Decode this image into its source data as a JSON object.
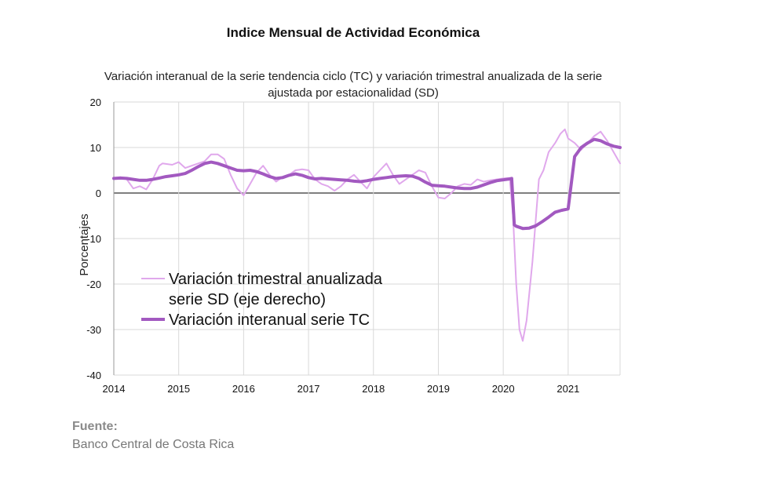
{
  "header": {
    "title": "Indice Mensual de  Actividad Económica",
    "subtitle_line1": "Variación interanual de la serie tendencia ciclo (TC) y variación trimestral anualizada de la serie",
    "subtitle_line2": "ajustada por estacionalidad (SD)"
  },
  "source": {
    "label": "Fuente:",
    "text": "Banco Central de Costa Rica"
  },
  "chart_data": {
    "type": "line",
    "title": "Indice Mensual de  Actividad Económica",
    "subtitle": "Variación interanual de la serie tendencia ciclo (TC) y variación trimestral anualizada de la serie ajustada por estacionalidad (SD)",
    "xlabel": "",
    "ylabel": "Porcentajes",
    "xlim": [
      2014,
      2021.8
    ],
    "ylim": [
      -40,
      20
    ],
    "yticks": [
      "20",
      "10",
      "0",
      "-10",
      "-20",
      "-30",
      "-40"
    ],
    "xticks": [
      "2014",
      "2015",
      "2016",
      "2017",
      "2018",
      "2019",
      "2020",
      "2021"
    ],
    "grid": true,
    "legend_position": "bottom-left",
    "legend": {
      "sd_line1": "Variación trimestral anualizada",
      "sd_line2": "serie SD (eje derecho)",
      "tc": "Variación interanual serie TC"
    },
    "colors": {
      "tc": "#a259c0",
      "sd": "#e0a8ec",
      "grid": "#d9d9d9",
      "zero": "#555555"
    },
    "series": [
      {
        "name": "Variación trimestral anualizada serie SD (eje derecho)",
        "x": [
          2014.0,
          2014.1,
          2014.2,
          2014.3,
          2014.4,
          2014.5,
          2014.6,
          2014.7,
          2014.75,
          2014.9,
          2015.0,
          2015.1,
          2015.2,
          2015.3,
          2015.4,
          2015.5,
          2015.6,
          2015.7,
          2015.8,
          2015.9,
          2016.0,
          2016.1,
          2016.2,
          2016.3,
          2016.4,
          2016.5,
          2016.6,
          2016.7,
          2016.8,
          2016.9,
          2017.0,
          2017.1,
          2017.2,
          2017.3,
          2017.4,
          2017.5,
          2017.6,
          2017.7,
          2017.8,
          2017.9,
          2018.0,
          2018.1,
          2018.2,
          2018.3,
          2018.4,
          2018.5,
          2018.6,
          2018.7,
          2018.8,
          2018.9,
          2019.0,
          2019.1,
          2019.2,
          2019.3,
          2019.4,
          2019.5,
          2019.6,
          2019.7,
          2019.8,
          2019.9,
          2020.0,
          2020.1,
          2020.15,
          2020.2,
          2020.25,
          2020.3,
          2020.36,
          2020.45,
          2020.55,
          2020.62,
          2020.7,
          2020.8,
          2020.88,
          2020.95,
          2021.0,
          2021.1,
          2021.2,
          2021.3,
          2021.4,
          2021.5,
          2021.6,
          2021.7,
          2021.8
        ],
        "values": [
          3.2,
          3.5,
          3.0,
          1.0,
          1.5,
          0.8,
          3.0,
          6.0,
          6.5,
          6.2,
          6.8,
          5.5,
          6.0,
          6.5,
          7.0,
          8.5,
          8.5,
          7.5,
          4.0,
          1.0,
          -0.5,
          2.0,
          4.5,
          6.0,
          4.0,
          2.5,
          3.5,
          4.0,
          5.0,
          5.2,
          5.0,
          3.0,
          2.0,
          1.5,
          0.5,
          1.5,
          3.0,
          4.0,
          2.5,
          1.0,
          3.5,
          5.0,
          6.5,
          4.0,
          2.0,
          3.0,
          4.0,
          5.0,
          4.5,
          1.5,
          -1.0,
          -1.2,
          0.0,
          1.5,
          2.0,
          1.8,
          3.0,
          2.5,
          2.8,
          3.0,
          3.2,
          3.3,
          -5.0,
          -20.0,
          -30.0,
          -32.5,
          -28.0,
          -15.0,
          3.0,
          5.0,
          9.0,
          11.0,
          13.0,
          14.0,
          12.0,
          11.0,
          9.5,
          11.0,
          12.5,
          13.5,
          11.5,
          9.0,
          6.5
        ]
      },
      {
        "name": "Variación interanual serie TC",
        "x": [
          2014.0,
          2014.1,
          2014.2,
          2014.3,
          2014.4,
          2014.5,
          2014.6,
          2014.7,
          2014.8,
          2014.9,
          2015.0,
          2015.1,
          2015.2,
          2015.3,
          2015.4,
          2015.5,
          2015.6,
          2015.7,
          2015.8,
          2015.9,
          2016.0,
          2016.1,
          2016.2,
          2016.3,
          2016.4,
          2016.5,
          2016.6,
          2016.7,
          2016.8,
          2016.9,
          2017.0,
          2017.1,
          2017.2,
          2017.3,
          2017.4,
          2017.5,
          2017.6,
          2017.7,
          2017.8,
          2017.9,
          2018.0,
          2018.1,
          2018.2,
          2018.3,
          2018.4,
          2018.5,
          2018.6,
          2018.7,
          2018.8,
          2018.9,
          2019.0,
          2019.1,
          2019.2,
          2019.3,
          2019.4,
          2019.5,
          2019.6,
          2019.7,
          2019.8,
          2019.9,
          2020.0,
          2020.1,
          2020.13,
          2020.17,
          2020.2,
          2020.3,
          2020.4,
          2020.5,
          2020.6,
          2020.7,
          2020.8,
          2020.9,
          2021.0,
          2021.1,
          2021.15,
          2021.2,
          2021.3,
          2021.4,
          2021.5,
          2021.6,
          2021.7,
          2021.8
        ],
        "values": [
          3.2,
          3.3,
          3.2,
          3.0,
          2.8,
          2.8,
          3.0,
          3.3,
          3.6,
          3.8,
          4.0,
          4.3,
          5.0,
          5.8,
          6.5,
          6.8,
          6.5,
          6.0,
          5.5,
          5.0,
          4.9,
          5.0,
          4.7,
          4.2,
          3.6,
          3.2,
          3.4,
          3.9,
          4.2,
          3.9,
          3.4,
          3.1,
          3.2,
          3.1,
          3.0,
          2.9,
          2.8,
          2.6,
          2.5,
          2.7,
          3.0,
          3.2,
          3.4,
          3.6,
          3.7,
          3.8,
          3.7,
          3.2,
          2.4,
          1.7,
          1.6,
          1.5,
          1.3,
          1.1,
          1.0,
          1.0,
          1.3,
          1.8,
          2.3,
          2.7,
          2.9,
          3.1,
          3.2,
          -7.0,
          -7.3,
          -7.8,
          -7.7,
          -7.2,
          -6.3,
          -5.3,
          -4.2,
          -3.8,
          -3.5,
          8.0,
          9.0,
          10.0,
          11.0,
          11.8,
          11.5,
          10.8,
          10.3,
          10.0
        ]
      }
    ]
  }
}
